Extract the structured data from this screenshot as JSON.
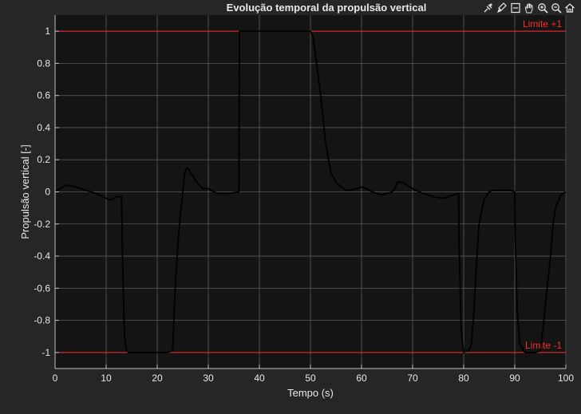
{
  "chart_data": {
    "type": "line",
    "title": "Evolução temporal da propulsão vertical",
    "xlabel": "Tempo (s)",
    "ylabel": "Propulsão vertical [-]",
    "xlim": [
      0,
      100
    ],
    "ylim": [
      -1.1,
      1.1
    ],
    "xticks": [
      0,
      10,
      20,
      30,
      40,
      50,
      60,
      70,
      80,
      90,
      100
    ],
    "xtick_labels": [
      "0",
      "10",
      "20",
      "30",
      "40",
      "50",
      "60",
      "70",
      "80",
      "90",
      "100"
    ],
    "yticks": [
      1,
      0.8,
      0.6,
      0.4,
      0.2,
      0,
      -0.2,
      -0.4,
      -0.6,
      -0.8,
      -1
    ],
    "ytick_labels": [
      "1",
      "0.8",
      "0.6",
      "0.4",
      "0.2",
      "0",
      "-0.2",
      "-0.4",
      "-0.6",
      "-0.8",
      "-1"
    ],
    "grid": true,
    "series": [
      {
        "color": "#000000",
        "x": [
          0,
          1,
          2,
          3,
          5,
          8,
          10,
          11,
          12,
          13,
          13.2,
          13.6,
          14,
          14.4,
          15,
          16,
          18,
          20,
          22,
          23,
          23.2,
          23.6,
          24,
          24.5,
          25,
          25.4,
          25.8,
          26.2,
          26.6,
          27,
          27.5,
          28,
          29,
          30,
          31,
          32,
          34,
          36,
          36.1,
          37,
          40,
          45,
          50,
          50.5,
          51,
          52,
          53,
          54,
          55,
          56,
          57,
          58,
          59,
          60,
          61,
          62,
          64,
          66,
          66.5,
          67,
          68,
          69,
          70,
          72,
          74,
          76,
          78,
          79,
          79.1,
          79.5,
          80,
          80.5,
          81,
          81.5,
          82,
          82.5,
          83,
          83.5,
          84,
          85,
          86,
          87,
          88,
          89,
          90,
          90.1,
          90.5,
          91,
          92,
          94,
          95,
          95.2,
          96,
          97,
          97.5,
          98,
          99,
          100
        ],
        "y": [
          0.0,
          0.02,
          0.04,
          0.04,
          0.02,
          -0.01,
          -0.04,
          -0.05,
          -0.03,
          -0.03,
          -0.4,
          -0.9,
          -0.99,
          -1.0,
          -1.0,
          -1.0,
          -1.0,
          -1.0,
          -1.0,
          -0.99,
          -0.85,
          -0.55,
          -0.35,
          -0.15,
          0.0,
          0.12,
          0.15,
          0.14,
          0.11,
          0.1,
          0.07,
          0.05,
          0.02,
          0.02,
          0.0,
          -0.01,
          -0.01,
          0.0,
          1.0,
          1.0,
          1.0,
          1.0,
          1.0,
          0.97,
          0.85,
          0.6,
          0.3,
          0.12,
          0.06,
          0.03,
          0.01,
          0.01,
          0.02,
          0.03,
          0.02,
          0.0,
          -0.02,
          0.0,
          0.02,
          0.06,
          0.06,
          0.04,
          0.02,
          -0.01,
          -0.03,
          -0.04,
          -0.02,
          -0.01,
          -0.3,
          -0.85,
          -1.0,
          -0.99,
          -0.99,
          -0.95,
          -0.75,
          -0.45,
          -0.2,
          -0.12,
          -0.05,
          0.0,
          0.01,
          0.01,
          0.01,
          0.01,
          0.0,
          -0.3,
          -0.75,
          -0.95,
          -1.0,
          -1.0,
          -0.99,
          -0.95,
          -0.7,
          -0.4,
          -0.2,
          -0.1,
          -0.02,
          0.0
        ]
      }
    ],
    "reference_lines": [
      {
        "y": 1,
        "label": "Limite +1",
        "color": "#ff2a2a"
      },
      {
        "y": -1,
        "label": "Limite -1",
        "color": "#ff2a2a"
      }
    ],
    "colors": {
      "figure_background": "#262626",
      "axes_background": "#141414",
      "grid": "#5a5a5a",
      "text": "#e8e8e8",
      "axis": "#bfbfbf"
    }
  },
  "toolbar": {
    "buttons": [
      {
        "icon": "data-tips-icon"
      },
      {
        "icon": "brush-icon"
      },
      {
        "icon": "legend-icon"
      },
      {
        "icon": "pan-hand-icon"
      },
      {
        "icon": "zoom-in-icon"
      },
      {
        "icon": "zoom-out-icon"
      },
      {
        "icon": "home-icon"
      }
    ]
  }
}
